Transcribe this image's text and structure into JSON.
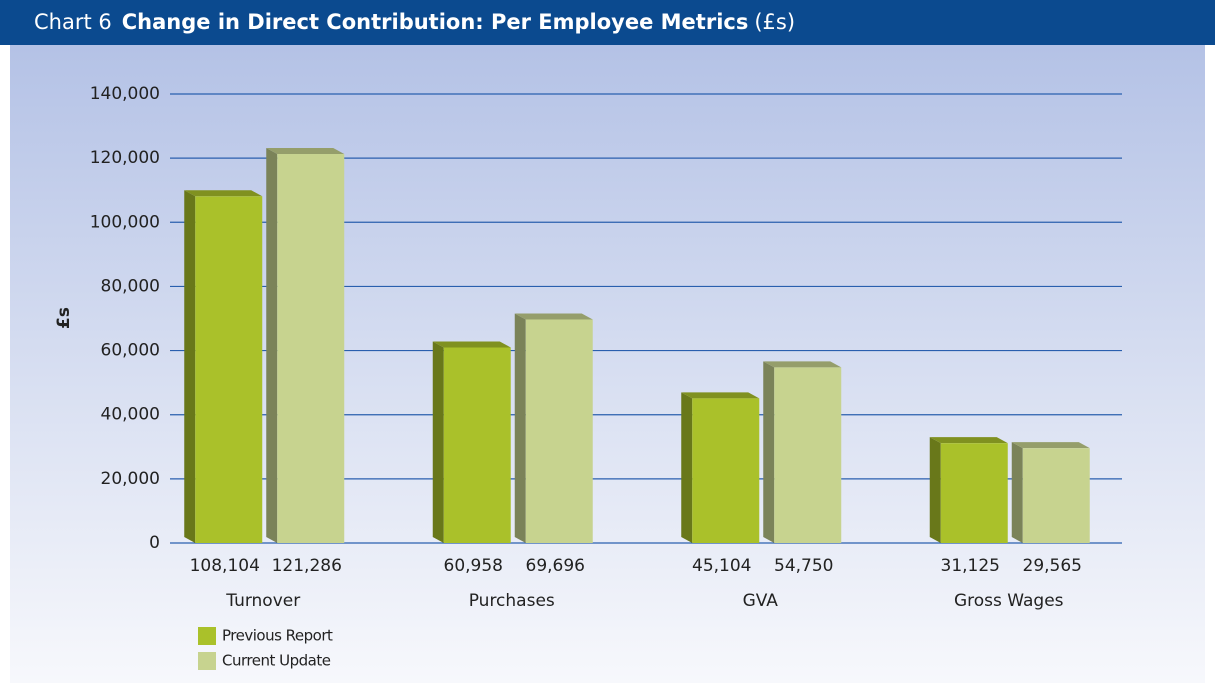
{
  "chart_data": {
    "type": "bar3d",
    "chart_label": "Chart 6",
    "title": "Change in Direct Contribution: Per Employee Metrics",
    "title_unit": "(£s)",
    "ylabel": "£s",
    "categories": [
      "Turnover",
      "Purchases",
      "GVA",
      "Gross Wages"
    ],
    "series": [
      {
        "name": "Previous Report",
        "color": "#aac12a",
        "values": [
          108104,
          60958,
          45104,
          31125
        ],
        "value_labels": [
          "108,104",
          "60,958",
          "45,104",
          "31,125"
        ]
      },
      {
        "name": "Current Update",
        "color": "#c7d38f",
        "values": [
          121286,
          69696,
          54750,
          29565
        ],
        "value_labels": [
          "121,286",
          "69,696",
          "54,750",
          "29,565"
        ]
      }
    ],
    "ylim": [
      0,
      140000
    ],
    "yticks": [
      0,
      {
        "value": 20000,
        "label": "20,000"
      },
      {
        "value": 40000,
        "label": "40,000"
      },
      {
        "value": 60000,
        "label": "60,000"
      },
      {
        "value": 80000,
        "label": "80,000"
      },
      {
        "value": 100000,
        "label": "100,000"
      },
      {
        "value": 120000,
        "label": "120,000"
      },
      {
        "value": 140000,
        "label": "140,000"
      }
    ],
    "grid": true,
    "grid_color": "#2a5fae",
    "header_color": "#0b4a8f"
  }
}
